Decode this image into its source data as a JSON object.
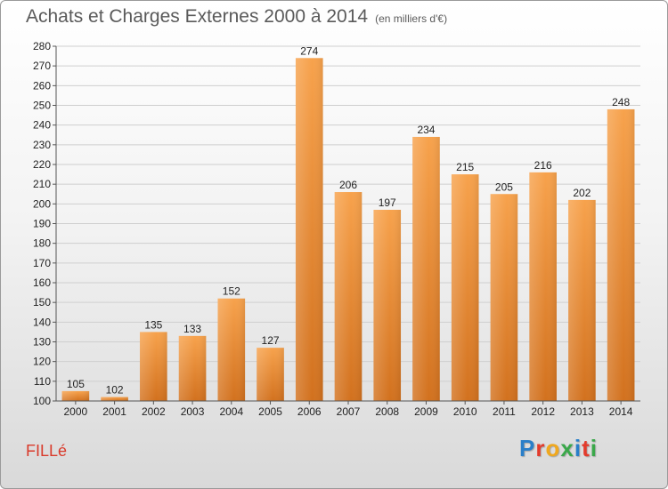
{
  "title": "Achats et Charges Externes 2000 à 2014",
  "subtitle": "(en milliers d'€)",
  "commune": "FILLé",
  "logo": {
    "text": "Proxiti",
    "letter_colors": [
      "#2a7fc9",
      "#e33b2c",
      "#f0a81e",
      "#3aa84a",
      "#2a7fc9",
      "#e33b2c",
      "#3aa84a"
    ]
  },
  "chart_data": {
    "type": "bar",
    "categories": [
      "2000",
      "2001",
      "2002",
      "2003",
      "2004",
      "2005",
      "2006",
      "2007",
      "2008",
      "2009",
      "2010",
      "2011",
      "2012",
      "2013",
      "2014"
    ],
    "values": [
      105,
      102,
      135,
      133,
      152,
      127,
      274,
      206,
      197,
      234,
      215,
      205,
      216,
      202,
      248
    ],
    "ylim": [
      100,
      280
    ],
    "yticks": [
      100,
      110,
      120,
      130,
      140,
      150,
      160,
      170,
      180,
      190,
      200,
      210,
      220,
      230,
      240,
      250,
      260,
      270,
      280
    ],
    "grid": true,
    "bar_color_top": "#f7a24c",
    "bar_color_bottom": "#d2711e"
  }
}
